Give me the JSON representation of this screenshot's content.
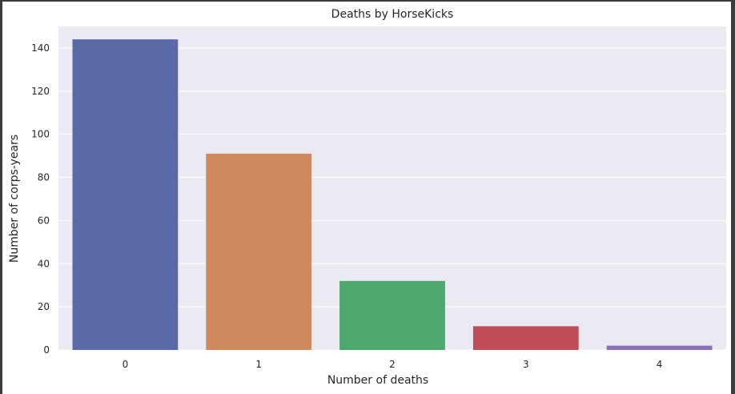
{
  "chart_data": {
    "type": "bar",
    "title": "Deaths by HorseKicks",
    "xlabel": "Number of deaths",
    "ylabel": "Number of corps-years",
    "categories": [
      "0",
      "1",
      "2",
      "3",
      "4"
    ],
    "values": [
      144,
      91,
      32,
      11,
      2
    ],
    "colors": [
      "#5a6aa8",
      "#d0885e",
      "#4ea86d",
      "#c14d59",
      "#8b72b5"
    ],
    "ylim": [
      0,
      150
    ],
    "yticks": [
      0,
      20,
      40,
      60,
      80,
      100,
      120,
      140
    ],
    "grid": true,
    "background": "#eaeaf2"
  }
}
